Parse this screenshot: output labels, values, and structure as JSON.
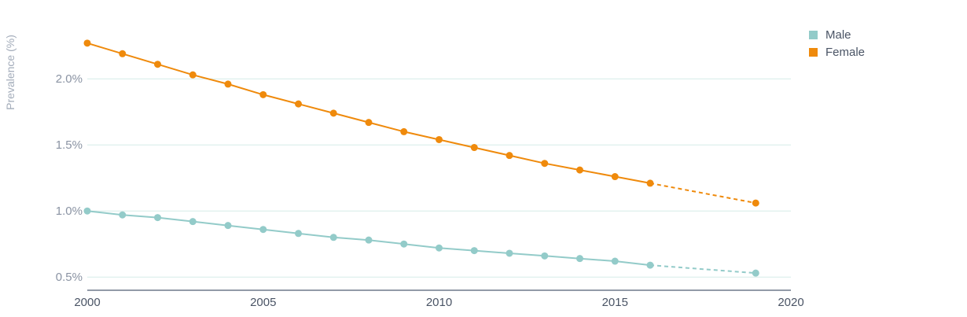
{
  "chart_data": {
    "type": "line",
    "ylabel": "Prevalence (%)",
    "xlabel": "",
    "xlim": [
      2000,
      2020
    ],
    "ylim": [
      0.4,
      2.4
    ],
    "x_ticks": [
      2000,
      2005,
      2010,
      2015,
      2020
    ],
    "x_tick_labels": [
      "2000",
      "2005",
      "2010",
      "2015",
      "2020"
    ],
    "y_ticks": [
      0.5,
      1.0,
      1.5,
      2.0
    ],
    "y_tick_labels": [
      "0.5%",
      "1.0%",
      "1.5%",
      "2.0%"
    ],
    "grid": true,
    "legend_position": "top-right",
    "series": [
      {
        "name": "Male",
        "color": "#93cbc9",
        "points": [
          {
            "x": 2000,
            "y": 1.0
          },
          {
            "x": 2001,
            "y": 0.97
          },
          {
            "x": 2002,
            "y": 0.95
          },
          {
            "x": 2003,
            "y": 0.92
          },
          {
            "x": 2004,
            "y": 0.89
          },
          {
            "x": 2005,
            "y": 0.86
          },
          {
            "x": 2006,
            "y": 0.83
          },
          {
            "x": 2007,
            "y": 0.8
          },
          {
            "x": 2008,
            "y": 0.78
          },
          {
            "x": 2009,
            "y": 0.75
          },
          {
            "x": 2010,
            "y": 0.72
          },
          {
            "x": 2011,
            "y": 0.7
          },
          {
            "x": 2012,
            "y": 0.68
          },
          {
            "x": 2013,
            "y": 0.66
          },
          {
            "x": 2014,
            "y": 0.64
          },
          {
            "x": 2015,
            "y": 0.62
          },
          {
            "x": 2016,
            "y": 0.59
          },
          {
            "x": 2019,
            "y": 0.53
          }
        ],
        "dashed_from_x": 2016
      },
      {
        "name": "Female",
        "color": "#ef8a0c",
        "points": [
          {
            "x": 2000,
            "y": 2.27
          },
          {
            "x": 2001,
            "y": 2.19
          },
          {
            "x": 2002,
            "y": 2.11
          },
          {
            "x": 2003,
            "y": 2.03
          },
          {
            "x": 2004,
            "y": 1.96
          },
          {
            "x": 2005,
            "y": 1.88
          },
          {
            "x": 2006,
            "y": 1.81
          },
          {
            "x": 2007,
            "y": 1.74
          },
          {
            "x": 2008,
            "y": 1.67
          },
          {
            "x": 2009,
            "y": 1.6
          },
          {
            "x": 2010,
            "y": 1.54
          },
          {
            "x": 2011,
            "y": 1.48
          },
          {
            "x": 2012,
            "y": 1.42
          },
          {
            "x": 2013,
            "y": 1.36
          },
          {
            "x": 2014,
            "y": 1.31
          },
          {
            "x": 2015,
            "y": 1.26
          },
          {
            "x": 2016,
            "y": 1.21
          },
          {
            "x": 2019,
            "y": 1.06
          }
        ],
        "dashed_from_x": 2016
      }
    ]
  }
}
